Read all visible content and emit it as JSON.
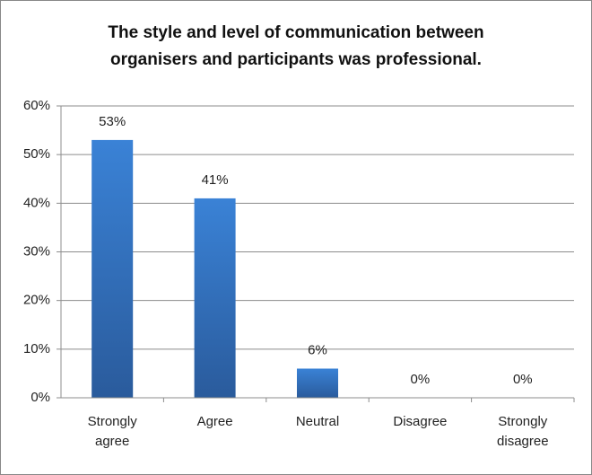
{
  "chart_data": {
    "type": "bar",
    "title": "The style and level of communication between organisers and participants was professional.",
    "categories": [
      "Strongly agree",
      "Agree",
      "Neutral",
      "Disagree",
      "Strongly disagree"
    ],
    "values": [
      53,
      41,
      6,
      0,
      0
    ],
    "value_labels": [
      "53%",
      "41%",
      "6%",
      "0%",
      "0%"
    ],
    "color": "#3576c8",
    "ylim": [
      0,
      60
    ],
    "yticks": [
      {
        "value": 0,
        "label": "0%"
      },
      {
        "value": 10,
        "label": "10%"
      },
      {
        "value": 20,
        "label": "20%"
      },
      {
        "value": 30,
        "label": "30%"
      },
      {
        "value": 40,
        "label": "40%"
      },
      {
        "value": 50,
        "label": "50%"
      },
      {
        "value": 60,
        "label": "60%"
      }
    ],
    "grid": true
  }
}
